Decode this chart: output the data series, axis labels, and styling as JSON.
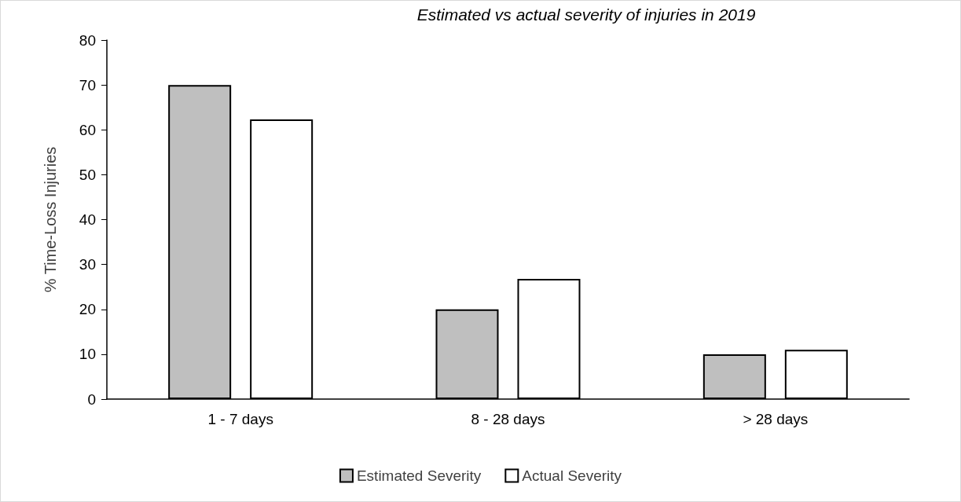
{
  "chart_data": {
    "type": "bar",
    "title": "Estimated vs actual severity of injuries in 2019",
    "ylabel": "% Time-Loss Injuries",
    "categories": [
      "1 - 7 days",
      "8 - 28 days",
      "> 28 days"
    ],
    "series": [
      {
        "name": "Estimated Severity",
        "color": "#bfbfbf",
        "values": [
          70,
          20,
          10
        ]
      },
      {
        "name": "Actual Severity",
        "color": "#ffffff",
        "values": [
          62.3,
          26.8,
          11
        ]
      }
    ],
    "ylim": [
      0,
      80
    ],
    "yticks": [
      0,
      10,
      20,
      30,
      40,
      50,
      60,
      70,
      80
    ],
    "grid": false,
    "legend": "bottom"
  }
}
